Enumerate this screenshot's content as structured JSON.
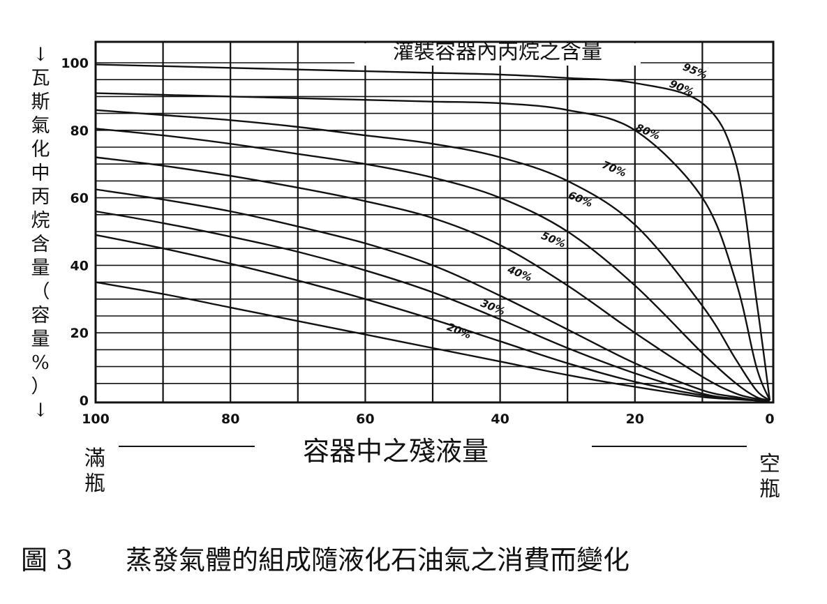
{
  "chart_data": {
    "type": "line",
    "title": "灌裝容器內丙烷之含量",
    "xlabel": "容器中之殘液量",
    "ylabel": "↓瓦斯氣化中丙烷含量（容量%）↓",
    "x_left_note": "滿瓶",
    "x_right_note": "空瓶",
    "xlim": [
      100,
      0
    ],
    "ylim": [
      0,
      100
    ],
    "x_ticks": [
      "100",
      "80",
      "60",
      "40",
      "20",
      "0"
    ],
    "y_ticks": [
      "0",
      "20",
      "40",
      "60",
      "80",
      "100"
    ],
    "grid": true,
    "x": [
      100,
      90,
      80,
      70,
      60,
      50,
      40,
      30,
      20,
      10,
      5,
      2,
      0
    ],
    "series": [
      {
        "name": "95%",
        "values": [
          99.5,
          99,
          98.5,
          98,
          97.5,
          97,
          96.5,
          95.5,
          94,
          88,
          70,
          30,
          0
        ]
      },
      {
        "name": "90%",
        "values": [
          91,
          90.5,
          90,
          89.5,
          89,
          88.5,
          88,
          86,
          80,
          60,
          35,
          10,
          0
        ]
      },
      {
        "name": "80%",
        "values": [
          86,
          84.5,
          83,
          81,
          78.5,
          76,
          72,
          65,
          52,
          28,
          12,
          3,
          0
        ]
      },
      {
        "name": "70%",
        "values": [
          80.5,
          78.5,
          76,
          73,
          70,
          66,
          60,
          50,
          34,
          14,
          5,
          1,
          0
        ]
      },
      {
        "name": "60%",
        "values": [
          72,
          69.5,
          66.5,
          63,
          59,
          54,
          46,
          34,
          20,
          7,
          2,
          0.5,
          0
        ]
      },
      {
        "name": "50%",
        "values": [
          62.5,
          59.5,
          56,
          51.5,
          46.5,
          40,
          31,
          21,
          11,
          3,
          1,
          0,
          0
        ]
      },
      {
        "name": "40%",
        "values": [
          56,
          52.5,
          48.5,
          44,
          38.5,
          32,
          24,
          15.5,
          8,
          2,
          0.5,
          0,
          0
        ]
      },
      {
        "name": "30%",
        "values": [
          49,
          45,
          40.5,
          35.5,
          30,
          24,
          17.5,
          11,
          5.5,
          1.5,
          0.5,
          0,
          0
        ]
      },
      {
        "name": "20%",
        "values": [
          35,
          31.5,
          27.5,
          23.5,
          19.5,
          15.5,
          11.5,
          7.5,
          4,
          1,
          0.3,
          0,
          0
        ]
      }
    ],
    "curve_label_positions": [
      {
        "name": "95%",
        "x": 13,
        "y": 98
      },
      {
        "name": "90%",
        "x": 15,
        "y": 93
      },
      {
        "name": "80%",
        "x": 20,
        "y": 80
      },
      {
        "name": "70%",
        "x": 25,
        "y": 69
      },
      {
        "name": "60%",
        "x": 30,
        "y": 60
      },
      {
        "name": "50%",
        "x": 34,
        "y": 48
      },
      {
        "name": "40%",
        "x": 39,
        "y": 38
      },
      {
        "name": "30%",
        "x": 43,
        "y": 28
      },
      {
        "name": "20%",
        "x": 48,
        "y": 21
      }
    ]
  },
  "caption": {
    "figure_number": "圖 3",
    "text": "蒸發氣體的組成隨液化石油氣之消費而變化"
  }
}
